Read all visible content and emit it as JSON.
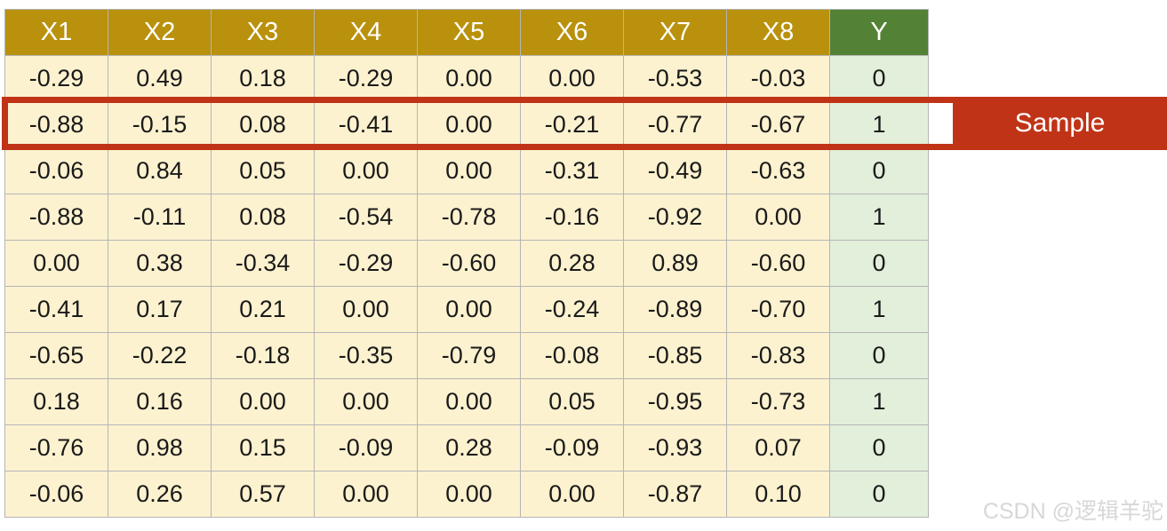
{
  "chart_data": {
    "type": "table",
    "columns": [
      "X1",
      "X2",
      "X3",
      "X4",
      "X5",
      "X6",
      "X7",
      "X8",
      "Y"
    ],
    "rows": [
      [
        "-0.29",
        "0.49",
        "0.18",
        "-0.29",
        "0.00",
        "0.00",
        "-0.53",
        "-0.03",
        "0"
      ],
      [
        "-0.88",
        "-0.15",
        "0.08",
        "-0.41",
        "0.00",
        "-0.21",
        "-0.77",
        "-0.67",
        "1"
      ],
      [
        "-0.06",
        "0.84",
        "0.05",
        "0.00",
        "0.00",
        "-0.31",
        "-0.49",
        "-0.63",
        "0"
      ],
      [
        "-0.88",
        "-0.11",
        "0.08",
        "-0.54",
        "-0.78",
        "-0.16",
        "-0.92",
        "0.00",
        "1"
      ],
      [
        "0.00",
        "0.38",
        "-0.34",
        "-0.29",
        "-0.60",
        "0.28",
        "0.89",
        "-0.60",
        "0"
      ],
      [
        "-0.41",
        "0.17",
        "0.21",
        "0.00",
        "0.00",
        "-0.24",
        "-0.89",
        "-0.70",
        "1"
      ],
      [
        "-0.65",
        "-0.22",
        "-0.18",
        "-0.35",
        "-0.79",
        "-0.08",
        "-0.85",
        "-0.83",
        "0"
      ],
      [
        "0.18",
        "0.16",
        "0.00",
        "0.00",
        "0.00",
        "0.05",
        "-0.95",
        "-0.73",
        "1"
      ],
      [
        "-0.76",
        "0.98",
        "0.15",
        "-0.09",
        "0.28",
        "-0.09",
        "-0.93",
        "0.07",
        "0"
      ],
      [
        "-0.06",
        "0.26",
        "0.57",
        "0.00",
        "0.00",
        "0.00",
        "-0.87",
        "0.10",
        "0"
      ]
    ],
    "highlighted_row_index": 1,
    "annotation": "Sample",
    "legend_position": "right"
  },
  "annotation": {
    "label": "Sample"
  },
  "watermark": {
    "text": "CSDN @逻辑羊驼"
  },
  "colors": {
    "header_gold": "#B9910D",
    "header_green": "#538135",
    "cell_cream": "#FDF2CF",
    "cell_lightgreen": "#E2EFDA",
    "highlight_red": "#C03317",
    "grid_line": "#B5B5B5",
    "text_ink": "#1A1A1A",
    "watermark_gray": "#D7D7D7"
  }
}
